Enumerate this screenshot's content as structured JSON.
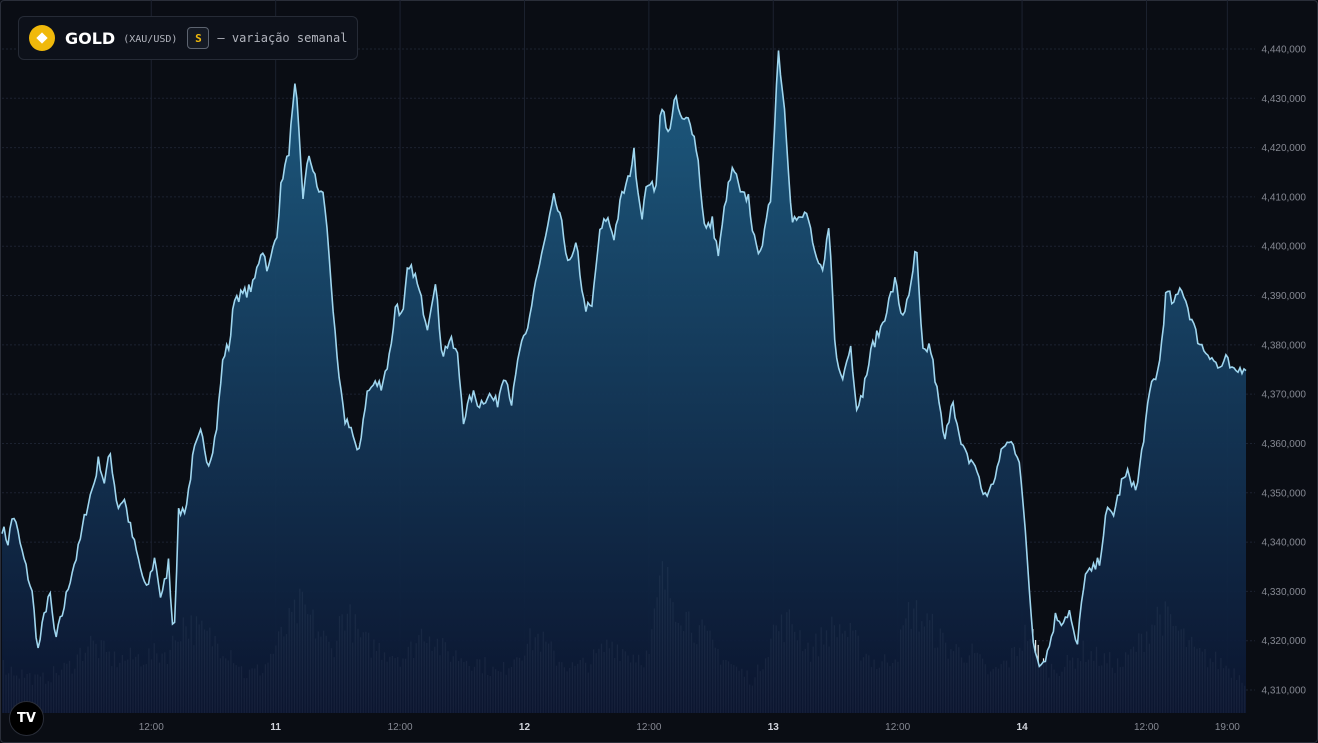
{
  "legend": {
    "symbol": "GOLD",
    "pair": "(XAU/USD)",
    "badge": "S",
    "description": "— variação semanal"
  },
  "logo": {
    "label": "TV"
  },
  "colors": {
    "line": "#9fd6ef",
    "area_top": "#1e5f86",
    "area_bottom": "#0b1530",
    "volume": "#ffffff",
    "grid": "#1c2230",
    "text": "#868993"
  },
  "chart_data": {
    "type": "area",
    "title": "GOLD (XAU/USD)",
    "subtitle": "— variação semanal",
    "ylim": [
      4303000,
      4445000
    ],
    "y_ticks": [
      4310000,
      4320000,
      4330000,
      4340000,
      4350000,
      4360000,
      4370000,
      4380000,
      4390000,
      4400000,
      4410000,
      4420000,
      4430000,
      4440000
    ],
    "y_tick_labels": [
      "4,310,000",
      "4,320,000",
      "4,330,000",
      "4,340,000",
      "4,350,000",
      "4,360,000",
      "4,370,000",
      "4,380,000",
      "4,390,000",
      "4,400,000",
      "4,410,000",
      "4,420,000",
      "4,430,000",
      "4,440,000"
    ],
    "x_range": [
      0,
      100
    ],
    "x_ticks": [
      {
        "x": 12,
        "label": "12:00",
        "bold": false
      },
      {
        "x": 22,
        "label": "11",
        "bold": true
      },
      {
        "x": 32,
        "label": "12:00",
        "bold": false
      },
      {
        "x": 42,
        "label": "12",
        "bold": true
      },
      {
        "x": 52,
        "label": "12:00",
        "bold": false
      },
      {
        "x": 62,
        "label": "13",
        "bold": true
      },
      {
        "x": 72,
        "label": "12:00",
        "bold": false
      },
      {
        "x": 82,
        "label": "14",
        "bold": true
      },
      {
        "x": 92,
        "label": "12:00",
        "bold": false
      },
      {
        "x": 98.5,
        "label": "19:00",
        "bold": false
      }
    ],
    "price_keypoints": [
      [
        0,
        4343000
      ],
      [
        0.5,
        4340000
      ],
      [
        0.9,
        4346000
      ],
      [
        1.6,
        4338000
      ],
      [
        2.4,
        4330000
      ],
      [
        2.9,
        4318000
      ],
      [
        3.4,
        4325000
      ],
      [
        3.8,
        4330000
      ],
      [
        4.3,
        4320000
      ],
      [
        4.9,
        4326000
      ],
      [
        5.6,
        4334000
      ],
      [
        6.1,
        4338000
      ],
      [
        6.8,
        4347000
      ],
      [
        7.4,
        4352000
      ],
      [
        7.8,
        4357000
      ],
      [
        8.2,
        4352000
      ],
      [
        8.7,
        4358000
      ],
      [
        9.3,
        4347000
      ],
      [
        9.8,
        4349000
      ],
      [
        10.4,
        4342000
      ],
      [
        11.0,
        4336000
      ],
      [
        11.6,
        4330000
      ],
      [
        12.3,
        4337000
      ],
      [
        12.8,
        4328000
      ],
      [
        13.4,
        4336000
      ],
      [
        13.8,
        4320000
      ],
      [
        14.2,
        4346000
      ],
      [
        14.8,
        4347000
      ],
      [
        15.4,
        4358000
      ],
      [
        16.0,
        4362000
      ],
      [
        16.6,
        4356000
      ],
      [
        17.2,
        4362000
      ],
      [
        17.8,
        4378000
      ],
      [
        18.3,
        4380000
      ],
      [
        18.7,
        4390000
      ],
      [
        19.3,
        4390000
      ],
      [
        20.2,
        4392000
      ],
      [
        20.9,
        4400000
      ],
      [
        21.4,
        4395000
      ],
      [
        22.1,
        4403000
      ],
      [
        22.5,
        4414000
      ],
      [
        23.0,
        4418000
      ],
      [
        23.6,
        4433000
      ],
      [
        24.2,
        4410000
      ],
      [
        24.7,
        4419000
      ],
      [
        25.3,
        4412000
      ],
      [
        25.9,
        4410000
      ],
      [
        26.4,
        4395000
      ],
      [
        26.9,
        4377000
      ],
      [
        27.5,
        4365000
      ],
      [
        28.0,
        4364000
      ],
      [
        28.6,
        4357000
      ],
      [
        29.3,
        4370000
      ],
      [
        29.9,
        4372000
      ],
      [
        30.5,
        4372000
      ],
      [
        31.1,
        4377000
      ],
      [
        31.7,
        4389000
      ],
      [
        32.2,
        4385000
      ],
      [
        32.6,
        4395000
      ],
      [
        33.1,
        4395000
      ],
      [
        33.6,
        4390000
      ],
      [
        34.2,
        4384000
      ],
      [
        34.8,
        4393000
      ],
      [
        35.4,
        4378000
      ],
      [
        36.0,
        4381000
      ],
      [
        36.6,
        4378000
      ],
      [
        37.1,
        4365000
      ],
      [
        37.8,
        4370000
      ],
      [
        38.4,
        4368000
      ],
      [
        39.1,
        4370000
      ],
      [
        39.8,
        4368000
      ],
      [
        40.4,
        4375000
      ],
      [
        41.0,
        4368000
      ],
      [
        41.6,
        4379000
      ],
      [
        42.2,
        4382000
      ],
      [
        42.8,
        4392000
      ],
      [
        43.3,
        4397000
      ],
      [
        43.9,
        4404000
      ],
      [
        44.4,
        4410000
      ],
      [
        45.0,
        4404000
      ],
      [
        45.6,
        4396000
      ],
      [
        46.2,
        4400000
      ],
      [
        46.8,
        4388000
      ],
      [
        47.4,
        4387000
      ],
      [
        48.0,
        4402000
      ],
      [
        48.6,
        4406000
      ],
      [
        49.2,
        4402000
      ],
      [
        49.8,
        4410000
      ],
      [
        50.3,
        4413000
      ],
      [
        50.8,
        4419000
      ],
      [
        51.4,
        4406000
      ],
      [
        52.0,
        4414000
      ],
      [
        52.5,
        4410000
      ],
      [
        53.0,
        4430000
      ],
      [
        53.5,
        4422000
      ],
      [
        54.1,
        4430000
      ],
      [
        54.7,
        4425000
      ],
      [
        55.3,
        4426000
      ],
      [
        55.9,
        4419000
      ],
      [
        56.5,
        4403000
      ],
      [
        57.1,
        4405000
      ],
      [
        57.6,
        4398000
      ],
      [
        58.2,
        4410000
      ],
      [
        58.8,
        4416000
      ],
      [
        59.4,
        4410000
      ],
      [
        60.0,
        4410000
      ],
      [
        60.6,
        4399000
      ],
      [
        61.2,
        4401000
      ],
      [
        61.8,
        4410000
      ],
      [
        62.4,
        4440000
      ],
      [
        62.9,
        4428000
      ],
      [
        63.5,
        4406000
      ],
      [
        64.1,
        4405000
      ],
      [
        64.7,
        4407000
      ],
      [
        65.3,
        4398000
      ],
      [
        65.9,
        4395000
      ],
      [
        66.5,
        4404000
      ],
      [
        67.0,
        4378000
      ],
      [
        67.6,
        4374000
      ],
      [
        68.2,
        4380000
      ],
      [
        68.8,
        4366000
      ],
      [
        69.4,
        4373000
      ],
      [
        70.0,
        4380000
      ],
      [
        70.6,
        4383000
      ],
      [
        71.2,
        4388000
      ],
      [
        71.8,
        4393000
      ],
      [
        72.3,
        4386000
      ],
      [
        72.9,
        4389000
      ],
      [
        73.5,
        4400000
      ],
      [
        74.0,
        4378000
      ],
      [
        74.6,
        4380000
      ],
      [
        75.2,
        4370000
      ],
      [
        75.8,
        4360000
      ],
      [
        76.4,
        4370000
      ],
      [
        77.0,
        4360000
      ],
      [
        77.6,
        4357000
      ],
      [
        78.2,
        4356000
      ],
      [
        78.8,
        4350000
      ],
      [
        79.4,
        4350000
      ],
      [
        80.0,
        4355000
      ],
      [
        80.6,
        4360000
      ],
      [
        81.2,
        4360000
      ],
      [
        81.8,
        4357000
      ],
      [
        82.3,
        4340000
      ],
      [
        82.9,
        4320000
      ],
      [
        83.5,
        4315000
      ],
      [
        84.1,
        4318000
      ],
      [
        84.7,
        4325000
      ],
      [
        85.2,
        4324000
      ],
      [
        85.8,
        4326000
      ],
      [
        86.4,
        4318000
      ],
      [
        87.0,
        4333000
      ],
      [
        87.6,
        4334000
      ],
      [
        88.2,
        4336000
      ],
      [
        88.8,
        4346000
      ],
      [
        89.4,
        4346000
      ],
      [
        90.0,
        4352000
      ],
      [
        90.6,
        4354000
      ],
      [
        91.2,
        4350000
      ],
      [
        91.8,
        4362000
      ],
      [
        92.4,
        4372000
      ],
      [
        93.0,
        4375000
      ],
      [
        93.6,
        4391000
      ],
      [
        94.2,
        4388000
      ],
      [
        94.8,
        4392000
      ],
      [
        95.4,
        4387000
      ],
      [
        96.0,
        4382000
      ],
      [
        96.6,
        4379000
      ],
      [
        97.2,
        4378000
      ],
      [
        97.8,
        4375000
      ],
      [
        98.4,
        4377000
      ],
      [
        99.0,
        4374000
      ],
      [
        100,
        4376000
      ]
    ],
    "volume_keypoints": [
      [
        0,
        0.32
      ],
      [
        3,
        0.22
      ],
      [
        5.5,
        0.32
      ],
      [
        7,
        0.48
      ],
      [
        9,
        0.36
      ],
      [
        11.5,
        0.38
      ],
      [
        13.5,
        0.42
      ],
      [
        14.5,
        0.62
      ],
      [
        16.5,
        0.52
      ],
      [
        18.5,
        0.42
      ],
      [
        19.5,
        0.26
      ],
      [
        21,
        0.3
      ],
      [
        22.5,
        0.52
      ],
      [
        24,
        0.72
      ],
      [
        25.5,
        0.55
      ],
      [
        26.5,
        0.42
      ],
      [
        27.5,
        0.7
      ],
      [
        29,
        0.48
      ],
      [
        31,
        0.42
      ],
      [
        32.5,
        0.38
      ],
      [
        34,
        0.58
      ],
      [
        35.5,
        0.42
      ],
      [
        37,
        0.38
      ],
      [
        38.5,
        0.34
      ],
      [
        40,
        0.26
      ],
      [
        41.5,
        0.42
      ],
      [
        43,
        0.52
      ],
      [
        44.5,
        0.38
      ],
      [
        46,
        0.3
      ],
      [
        47.5,
        0.36
      ],
      [
        49,
        0.48
      ],
      [
        50.5,
        0.4
      ],
      [
        52,
        0.38
      ],
      [
        53,
        0.92
      ],
      [
        54.5,
        0.72
      ],
      [
        56,
        0.56
      ],
      [
        57.5,
        0.42
      ],
      [
        59,
        0.3
      ],
      [
        60.5,
        0.22
      ],
      [
        62,
        0.56
      ],
      [
        63.5,
        0.62
      ],
      [
        65,
        0.42
      ],
      [
        66.5,
        0.56
      ],
      [
        67.5,
        0.58
      ],
      [
        69,
        0.44
      ],
      [
        70.5,
        0.32
      ],
      [
        72,
        0.42
      ],
      [
        73,
        0.7
      ],
      [
        74.5,
        0.6
      ],
      [
        76,
        0.44
      ],
      [
        78,
        0.4
      ],
      [
        79.5,
        0.26
      ],
      [
        81,
        0.36
      ],
      [
        82.5,
        0.56
      ],
      [
        84,
        0.3
      ],
      [
        85.5,
        0.32
      ],
      [
        87,
        0.42
      ],
      [
        88.5,
        0.36
      ],
      [
        90,
        0.32
      ],
      [
        91.5,
        0.48
      ],
      [
        93,
        0.68
      ],
      [
        94.5,
        0.56
      ],
      [
        96,
        0.4
      ],
      [
        98,
        0.34
      ],
      [
        99.5,
        0.26
      ],
      [
        100,
        0.22
      ]
    ]
  }
}
